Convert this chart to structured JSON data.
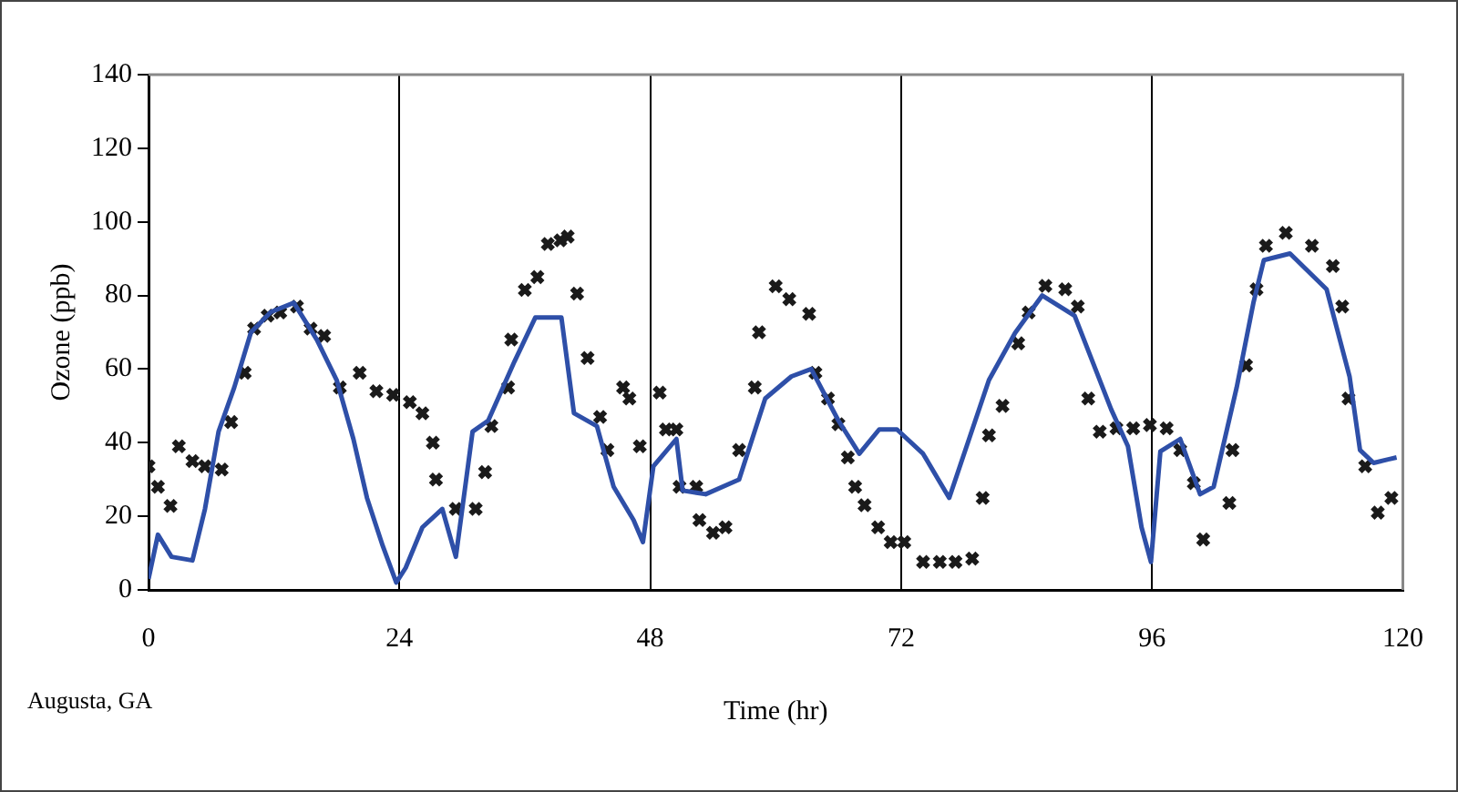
{
  "chart_data": {
    "type": "line",
    "xlabel": "Time (hr)",
    "ylabel": "Ozone (ppb)",
    "annotations": [
      "Augusta, GA"
    ],
    "xlim": [
      0,
      120
    ],
    "xticks": [
      0,
      24,
      48,
      72,
      96,
      120
    ],
    "ylim": [
      0,
      140
    ],
    "yticks": [
      0,
      20,
      40,
      60,
      80,
      100,
      120,
      140
    ],
    "grid": "x",
    "legend": false,
    "series": [
      {
        "color": "#2e4fa8",
        "marker": "none",
        "line_style": "solid",
        "x": [
          0,
          0.9,
          2.2,
          4.2,
          5.4,
          6.7,
          8.2,
          9.8,
          11.7,
          13.9,
          16.1,
          18,
          19.6,
          20.9,
          22.4,
          23.7,
          24.6,
          26.2,
          28.1,
          29.4,
          31,
          32.5,
          35,
          37,
          39.5,
          40.7,
          42.9,
          44.5,
          46.4,
          47.3,
          48.3,
          50.5,
          51.1,
          53.3,
          56.5,
          59,
          61.5,
          63.4,
          66,
          68,
          69.9,
          71.6,
          74.1,
          76.6,
          78.5,
          80.4,
          82.9,
          85.5,
          88.6,
          92.1,
          93.7,
          95,
          95.9,
          96.8,
          98.7,
          100.6,
          101.9,
          104.1,
          105.7,
          106.7,
          109.2,
          112.7,
          114.9,
          115.9,
          117.2,
          119.4
        ],
        "values": [
          3,
          15,
          9,
          8,
          22,
          43,
          55,
          70,
          75.5,
          78,
          68,
          57,
          41,
          25,
          12,
          2,
          6,
          17,
          22,
          9,
          43,
          46,
          62,
          74,
          74,
          48,
          44.5,
          28,
          19,
          13,
          33.6,
          41,
          27,
          26,
          30,
          52,
          58,
          60,
          46,
          37,
          43.6,
          43.6,
          37,
          25,
          41,
          57,
          69.8,
          80,
          74.5,
          49,
          39,
          17,
          7.6,
          37.6,
          41,
          26,
          28,
          55,
          78,
          89.6,
          91.4,
          81.7,
          58,
          38,
          34.5,
          36
        ]
      },
      {
        "type": "scatter",
        "color": "#1a1a1a",
        "marker": "cross",
        "x": [
          0,
          0.9,
          2.1,
          2.9,
          4.2,
          5.4,
          7,
          7.9,
          9.2,
          10.1,
          11.4,
          12.6,
          14.2,
          15.5,
          16.8,
          18.3,
          20.2,
          21.8,
          23.4,
          25,
          26.2,
          27.2,
          27.5,
          29.4,
          31.3,
          32.2,
          32.8,
          34.4,
          34.7,
          36,
          37.2,
          38.2,
          39.4,
          40.1,
          41,
          42,
          43.2,
          43.9,
          45.4,
          46,
          47,
          48.9,
          49.5,
          50.5,
          50.8,
          52.4,
          52.7,
          54,
          55.2,
          56.5,
          58,
          58.4,
          60,
          61.3,
          63.2,
          63.8,
          65,
          66,
          66.9,
          67.6,
          68.5,
          69.8,
          71,
          72.3,
          74.1,
          75.7,
          77.2,
          78.8,
          79.8,
          80.4,
          81.7,
          83.2,
          84.2,
          85.8,
          87.7,
          88.9,
          89.9,
          91,
          92.6,
          94.2,
          95.8,
          97.4,
          98.7,
          100,
          100.9,
          103.4,
          103.7,
          105,
          106,
          106.9,
          108.8,
          111.3,
          113.3,
          114.2,
          114.8,
          116.4,
          117.6,
          118.9
        ],
        "values": [
          33.6,
          28,
          22.8,
          39,
          35,
          33.6,
          32.7,
          45.6,
          59,
          71,
          74.5,
          75.4,
          77,
          71,
          69,
          55,
          59,
          54,
          53,
          51,
          48,
          40,
          30,
          22,
          22,
          32,
          44.5,
          55,
          68,
          81.5,
          85,
          94,
          95,
          96,
          80.5,
          63,
          47,
          38,
          55,
          52,
          39,
          53.6,
          43.6,
          43.6,
          28,
          28,
          19,
          15.5,
          17,
          38,
          55,
          70,
          82.5,
          79,
          75,
          59,
          52,
          45,
          36,
          28,
          23,
          17,
          13,
          13,
          7.6,
          7.6,
          7.6,
          8.5,
          25,
          42,
          50,
          67,
          75.4,
          82.6,
          81.7,
          77,
          52,
          43,
          43.9,
          43.9,
          44.8,
          43.9,
          38,
          29,
          13.7,
          23.6,
          38,
          61,
          81.7,
          93.5,
          97,
          93.5,
          88,
          77,
          52,
          33.6,
          21,
          25
        ]
      }
    ]
  }
}
